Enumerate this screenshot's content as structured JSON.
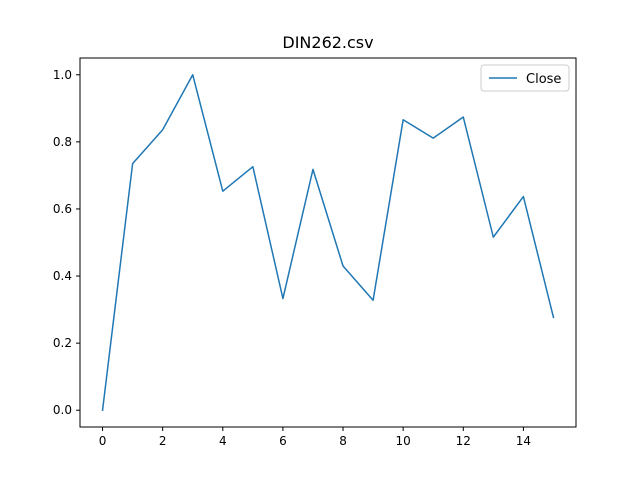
{
  "chart_data": {
    "type": "line",
    "title": "DIN262.csv",
    "xlabel": "",
    "ylabel": "",
    "xlim": [
      -0.75,
      15.75
    ],
    "ylim": [
      -0.05,
      1.05
    ],
    "x_ticks": [
      0,
      2,
      4,
      6,
      8,
      10,
      12,
      14
    ],
    "x_tick_labels": [
      "0",
      "2",
      "4",
      "6",
      "8",
      "10",
      "12",
      "14"
    ],
    "y_ticks": [
      0.0,
      0.2,
      0.4,
      0.6,
      0.8,
      1.0
    ],
    "y_tick_labels": [
      "0.0",
      "0.2",
      "0.4",
      "0.6",
      "0.8",
      "1.0"
    ],
    "grid": false,
    "legend_position": "top-right",
    "series": [
      {
        "name": "Close",
        "color": "#1f77b4",
        "x": [
          0,
          1,
          2,
          3,
          4,
          5,
          6,
          7,
          8,
          9,
          10,
          11,
          12,
          13,
          14,
          15
        ],
        "values": [
          0.0,
          0.735,
          0.836,
          1.0,
          0.653,
          0.726,
          0.333,
          0.718,
          0.43,
          0.328,
          0.866,
          0.811,
          0.874,
          0.516,
          0.637,
          0.277
        ]
      }
    ]
  }
}
